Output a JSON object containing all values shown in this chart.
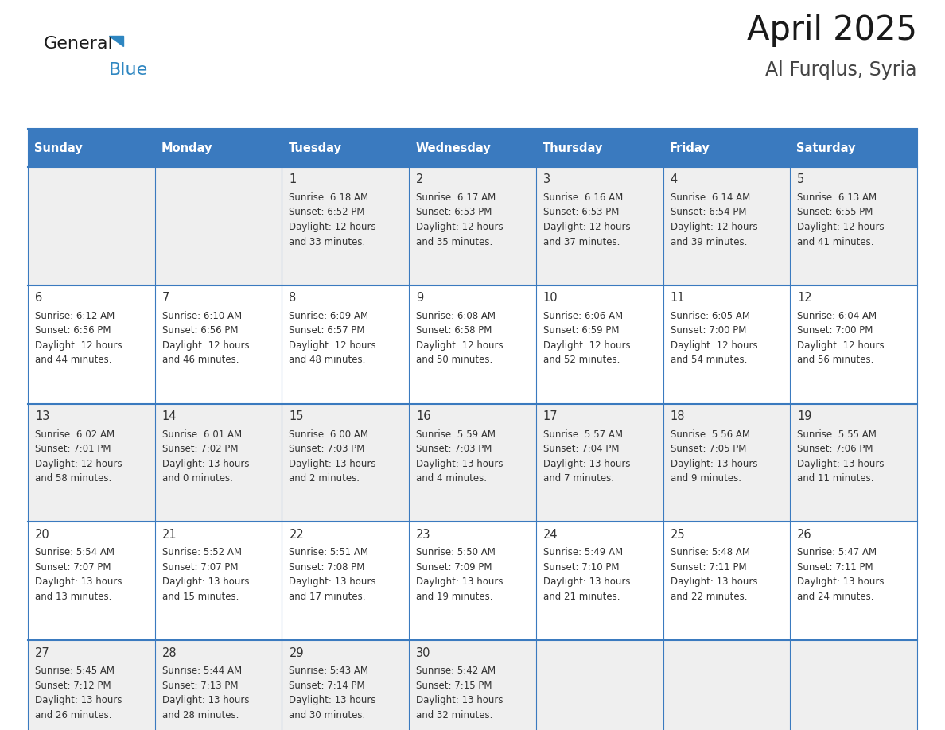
{
  "title": "April 2025",
  "subtitle": "Al Furqlus, Syria",
  "days_of_week": [
    "Sunday",
    "Monday",
    "Tuesday",
    "Wednesday",
    "Thursday",
    "Friday",
    "Saturday"
  ],
  "header_bg": "#3a7abf",
  "header_text_color": "#ffffff",
  "row_bg_odd": "#efefef",
  "row_bg_even": "#ffffff",
  "cell_text_color": "#333333",
  "grid_line_color": "#3a7abf",
  "fig_width": 11.88,
  "fig_height": 9.18,
  "calendar_data": [
    [
      {
        "day": "",
        "info": ""
      },
      {
        "day": "",
        "info": ""
      },
      {
        "day": "1",
        "info": "Sunrise: 6:18 AM\nSunset: 6:52 PM\nDaylight: 12 hours\nand 33 minutes."
      },
      {
        "day": "2",
        "info": "Sunrise: 6:17 AM\nSunset: 6:53 PM\nDaylight: 12 hours\nand 35 minutes."
      },
      {
        "day": "3",
        "info": "Sunrise: 6:16 AM\nSunset: 6:53 PM\nDaylight: 12 hours\nand 37 minutes."
      },
      {
        "day": "4",
        "info": "Sunrise: 6:14 AM\nSunset: 6:54 PM\nDaylight: 12 hours\nand 39 minutes."
      },
      {
        "day": "5",
        "info": "Sunrise: 6:13 AM\nSunset: 6:55 PM\nDaylight: 12 hours\nand 41 minutes."
      }
    ],
    [
      {
        "day": "6",
        "info": "Sunrise: 6:12 AM\nSunset: 6:56 PM\nDaylight: 12 hours\nand 44 minutes."
      },
      {
        "day": "7",
        "info": "Sunrise: 6:10 AM\nSunset: 6:56 PM\nDaylight: 12 hours\nand 46 minutes."
      },
      {
        "day": "8",
        "info": "Sunrise: 6:09 AM\nSunset: 6:57 PM\nDaylight: 12 hours\nand 48 minutes."
      },
      {
        "day": "9",
        "info": "Sunrise: 6:08 AM\nSunset: 6:58 PM\nDaylight: 12 hours\nand 50 minutes."
      },
      {
        "day": "10",
        "info": "Sunrise: 6:06 AM\nSunset: 6:59 PM\nDaylight: 12 hours\nand 52 minutes."
      },
      {
        "day": "11",
        "info": "Sunrise: 6:05 AM\nSunset: 7:00 PM\nDaylight: 12 hours\nand 54 minutes."
      },
      {
        "day": "12",
        "info": "Sunrise: 6:04 AM\nSunset: 7:00 PM\nDaylight: 12 hours\nand 56 minutes."
      }
    ],
    [
      {
        "day": "13",
        "info": "Sunrise: 6:02 AM\nSunset: 7:01 PM\nDaylight: 12 hours\nand 58 minutes."
      },
      {
        "day": "14",
        "info": "Sunrise: 6:01 AM\nSunset: 7:02 PM\nDaylight: 13 hours\nand 0 minutes."
      },
      {
        "day": "15",
        "info": "Sunrise: 6:00 AM\nSunset: 7:03 PM\nDaylight: 13 hours\nand 2 minutes."
      },
      {
        "day": "16",
        "info": "Sunrise: 5:59 AM\nSunset: 7:03 PM\nDaylight: 13 hours\nand 4 minutes."
      },
      {
        "day": "17",
        "info": "Sunrise: 5:57 AM\nSunset: 7:04 PM\nDaylight: 13 hours\nand 7 minutes."
      },
      {
        "day": "18",
        "info": "Sunrise: 5:56 AM\nSunset: 7:05 PM\nDaylight: 13 hours\nand 9 minutes."
      },
      {
        "day": "19",
        "info": "Sunrise: 5:55 AM\nSunset: 7:06 PM\nDaylight: 13 hours\nand 11 minutes."
      }
    ],
    [
      {
        "day": "20",
        "info": "Sunrise: 5:54 AM\nSunset: 7:07 PM\nDaylight: 13 hours\nand 13 minutes."
      },
      {
        "day": "21",
        "info": "Sunrise: 5:52 AM\nSunset: 7:07 PM\nDaylight: 13 hours\nand 15 minutes."
      },
      {
        "day": "22",
        "info": "Sunrise: 5:51 AM\nSunset: 7:08 PM\nDaylight: 13 hours\nand 17 minutes."
      },
      {
        "day": "23",
        "info": "Sunrise: 5:50 AM\nSunset: 7:09 PM\nDaylight: 13 hours\nand 19 minutes."
      },
      {
        "day": "24",
        "info": "Sunrise: 5:49 AM\nSunset: 7:10 PM\nDaylight: 13 hours\nand 21 minutes."
      },
      {
        "day": "25",
        "info": "Sunrise: 5:48 AM\nSunset: 7:11 PM\nDaylight: 13 hours\nand 22 minutes."
      },
      {
        "day": "26",
        "info": "Sunrise: 5:47 AM\nSunset: 7:11 PM\nDaylight: 13 hours\nand 24 minutes."
      }
    ],
    [
      {
        "day": "27",
        "info": "Sunrise: 5:45 AM\nSunset: 7:12 PM\nDaylight: 13 hours\nand 26 minutes."
      },
      {
        "day": "28",
        "info": "Sunrise: 5:44 AM\nSunset: 7:13 PM\nDaylight: 13 hours\nand 28 minutes."
      },
      {
        "day": "29",
        "info": "Sunrise: 5:43 AM\nSunset: 7:14 PM\nDaylight: 13 hours\nand 30 minutes."
      },
      {
        "day": "30",
        "info": "Sunrise: 5:42 AM\nSunset: 7:15 PM\nDaylight: 13 hours\nand 32 minutes."
      },
      {
        "day": "",
        "info": ""
      },
      {
        "day": "",
        "info": ""
      },
      {
        "day": "",
        "info": ""
      }
    ]
  ],
  "logo_text_general": "General",
  "logo_text_blue": "Blue",
  "logo_triangle_color": "#2e86c1",
  "title_color": "#1a1a1a",
  "subtitle_color": "#444444"
}
